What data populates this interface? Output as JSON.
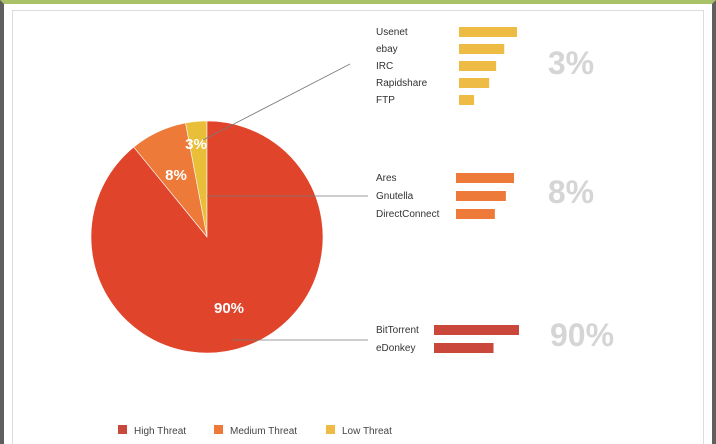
{
  "chart_data": {
    "type": "pie",
    "slices": [
      {
        "name": "High Threat",
        "value": 90,
        "label": "90%",
        "color": "#e0442a"
      },
      {
        "name": "Medium Threat",
        "value": 8,
        "label": "8%",
        "color": "#ee7a3a"
      },
      {
        "name": "Low Threat",
        "value": 3,
        "label": "3%",
        "color": "#e9bf3a"
      }
    ],
    "breakdown": [
      {
        "group": "Low Threat",
        "percent_label": "3%",
        "color": "#eebb45",
        "items": [
          {
            "label": "Usenet",
            "value": 100
          },
          {
            "label": "ebay",
            "value": 78
          },
          {
            "label": "IRC",
            "value": 64
          },
          {
            "label": "Rapidshare",
            "value": 52
          },
          {
            "label": "FTP",
            "value": 26
          }
        ]
      },
      {
        "group": "Medium Threat",
        "percent_label": "8%",
        "color": "#ee7a3a",
        "items": [
          {
            "label": "Ares",
            "value": 100
          },
          {
            "label": "Gnutella",
            "value": 86
          },
          {
            "label": "DirectConnect",
            "value": 67
          }
        ]
      },
      {
        "group": "High Threat",
        "percent_label": "90%",
        "color": "#c9473b",
        "items": [
          {
            "label": "BitTorrent",
            "value": 100
          },
          {
            "label": "eDonkey",
            "value": 70
          }
        ]
      }
    ],
    "legend": [
      {
        "label": "High Threat",
        "color": "#c9473b"
      },
      {
        "label": "Medium Threat",
        "color": "#ee7a3a"
      },
      {
        "label": "Low Threat",
        "color": "#eebb45"
      }
    ]
  }
}
